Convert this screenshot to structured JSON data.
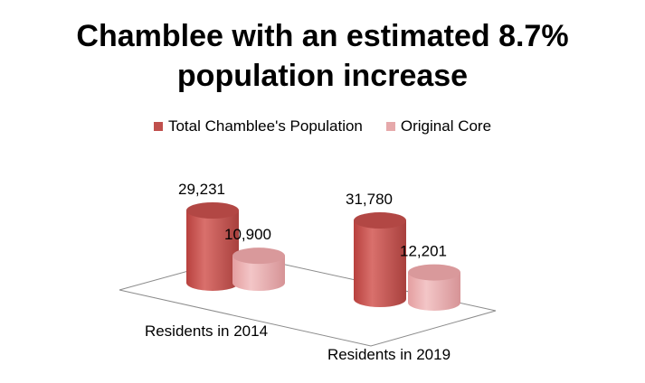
{
  "chart_data": {
    "type": "bar",
    "title_lines": [
      "Chamblee with an estimated 8.7%",
      "population increase"
    ],
    "categories": [
      "Residents in 2014",
      "Residents in 2019"
    ],
    "series": [
      {
        "name": "Total Chamblee's Population",
        "values": [
          29231,
          31780
        ],
        "labels": [
          "29,231",
          "31,780"
        ],
        "color": "#c0504d"
      },
      {
        "name": "Original Core",
        "values": [
          10900,
          12201
        ],
        "labels": [
          "10,900",
          "12,201"
        ],
        "color": "#e6a9ab"
      }
    ],
    "style": "3d-cylinder",
    "legend_position": "top",
    "grid": false
  }
}
